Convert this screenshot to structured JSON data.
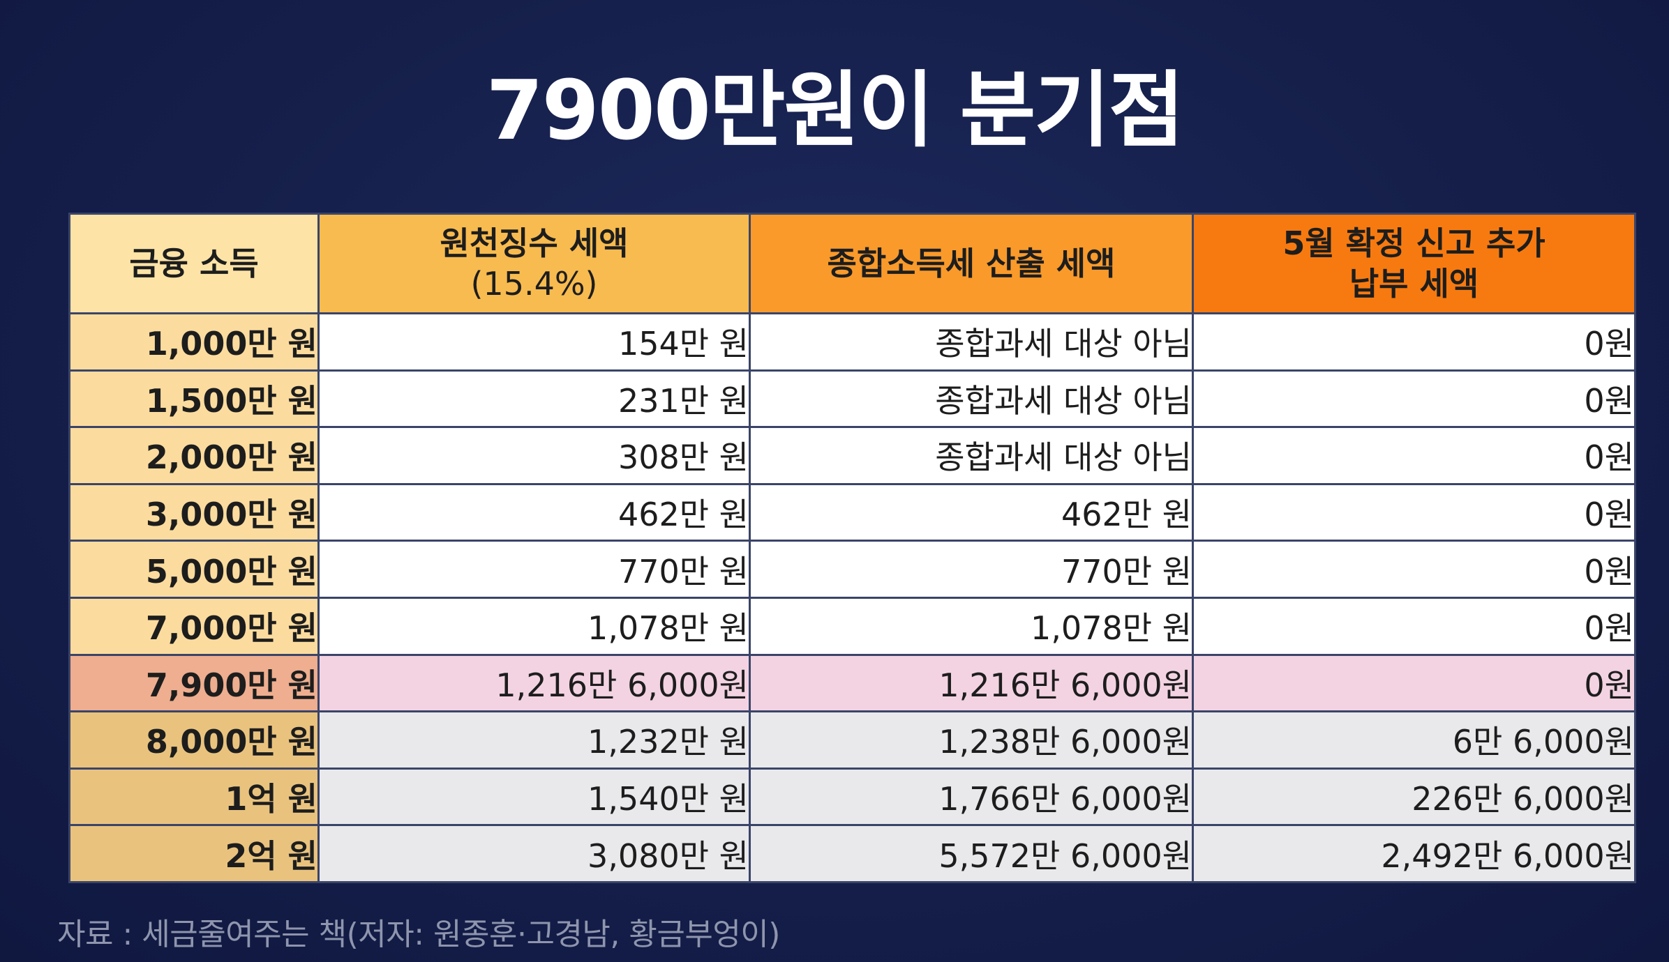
{
  "title": "7900만원이 분기점",
  "table": {
    "headers": {
      "income": "금융 소득",
      "withholding": "원천징수 세액",
      "withholding_rate": "(15.4%)",
      "comprehensive": "종합소득세 산출 세액",
      "additional_line1": "5월 확정 신고 추가",
      "additional_line2": "납부 세액"
    },
    "rows": [
      {
        "income": "1,000만 원",
        "withholding": "154만 원",
        "comprehensive": "종합과세 대상 아님",
        "additional": "0원"
      },
      {
        "income": "1,500만 원",
        "withholding": "231만 원",
        "comprehensive": "종합과세 대상 아님",
        "additional": "0원"
      },
      {
        "income": "2,000만 원",
        "withholding": "308만 원",
        "comprehensive": "종합과세 대상 아님",
        "additional": "0원"
      },
      {
        "income": "3,000만 원",
        "withholding": "462만 원",
        "comprehensive": "462만 원",
        "additional": "0원"
      },
      {
        "income": "5,000만 원",
        "withholding": "770만 원",
        "comprehensive": "770만 원",
        "additional": "0원"
      },
      {
        "income": "7,000만 원",
        "withholding": "1,078만 원",
        "comprehensive": "1,078만 원",
        "additional": "0원"
      },
      {
        "income": "7,900만 원",
        "withholding": "1,216만 6,000원",
        "comprehensive": "1,216만 6,000원",
        "additional": "0원"
      },
      {
        "income": "8,000만 원",
        "withholding": "1,232만 원",
        "comprehensive": "1,238만 6,000원",
        "additional": "6만 6,000원"
      },
      {
        "income": "1억 원",
        "withholding": "1,540만 원",
        "comprehensive": "1,766만 6,000원",
        "additional": "226만 6,000원"
      },
      {
        "income": "2억 원",
        "withholding": "3,080만 원",
        "comprehensive": "5,572만 6,000원",
        "additional": "2,492만 6,000원"
      }
    ]
  },
  "source": "자료 : 세금줄여주는 책(저자: 원종훈·고경남, 황금부엉이)",
  "colors": {
    "background": "#151f4a",
    "income_column": "#fcdc9e",
    "withholding_header": "#f8bb4f",
    "comprehensive_header": "#f99a2b",
    "additional_header": "#f77a10",
    "highlight_row": "#f3d3e2"
  }
}
